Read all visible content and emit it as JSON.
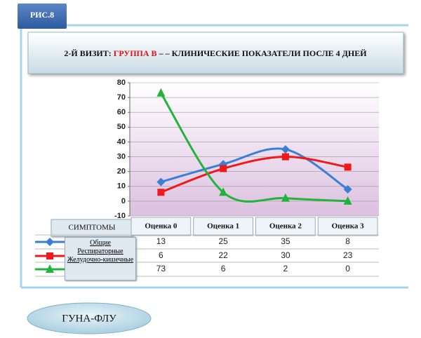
{
  "header": {
    "figure": "РИС.8",
    "title_prefix": "2-Й ВИЗИТ: ",
    "title_highlight": "ГРУППА В",
    "title_suffix": " – – КЛИНИЧЕСКИЕ ПОКАЗАТЕЛИ ПОСЛЕ 4 ДНЕЙ"
  },
  "chart_data": {
    "type": "line",
    "table_header": "СИМПТОМЫ",
    "categories": [
      "Оценка 0",
      "Оценка 1",
      "Оценка 2",
      "Оценка 3"
    ],
    "series": [
      {
        "name": "Общие",
        "color": "#3a7fd5",
        "marker": "diamond",
        "values": [
          13,
          25,
          35,
          8
        ]
      },
      {
        "name": "Респираторные",
        "color": "#f01818",
        "marker": "square",
        "values": [
          6,
          22,
          30,
          23
        ]
      },
      {
        "name": "Желудочно-кишечные",
        "color": "#22b43a",
        "marker": "triangle",
        "values": [
          73,
          6,
          2,
          0
        ]
      }
    ],
    "ylim": [
      -10,
      80
    ],
    "yticks": [
      -10,
      0,
      10,
      20,
      30,
      40,
      50,
      60,
      70,
      80
    ],
    "grid": true
  },
  "button": "ГУНА-ФЛУ"
}
